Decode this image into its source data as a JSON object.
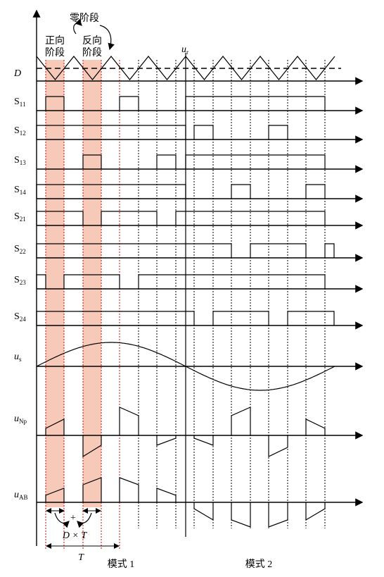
{
  "header": {
    "zero_stage": "零阶段",
    "forward_stage": [
      "正向",
      "阶段"
    ],
    "reverse_stage": [
      "反向",
      "阶段"
    ],
    "carrier": {
      "main": "u",
      "sub": "r"
    },
    "duty": "D"
  },
  "signals": [
    {
      "main": "S",
      "sub": "11"
    },
    {
      "main": "S",
      "sub": "12"
    },
    {
      "main": "S",
      "sub": "13"
    },
    {
      "main": "S",
      "sub": "14"
    },
    {
      "main": "S",
      "sub": "21"
    },
    {
      "main": "S",
      "sub": "22"
    },
    {
      "main": "S",
      "sub": "23"
    },
    {
      "main": "S",
      "sub": "24"
    }
  ],
  "waves": [
    {
      "main": "u",
      "sub": "s"
    },
    {
      "main": "u",
      "sub": "Np"
    },
    {
      "main": "u",
      "sub": "AB"
    }
  ],
  "footer": {
    "plus": "+",
    "duty_period": "D × T",
    "period": "T",
    "mode1": "模式 1",
    "mode2": "模式 2"
  }
}
